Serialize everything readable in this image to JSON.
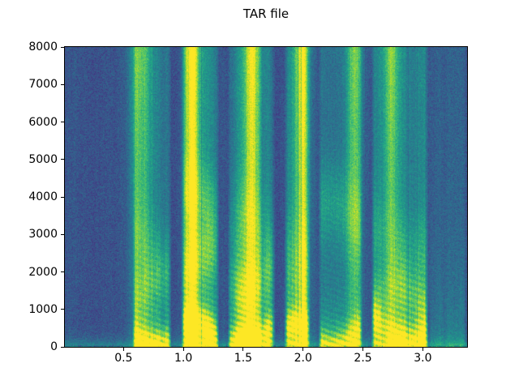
{
  "figure": {
    "background_color": "#ffffff",
    "spine_color": "#000000",
    "tick_color": "#000000"
  },
  "chart_data": {
    "type": "heatmap",
    "subtype": "spectrogram",
    "title": "TAR file",
    "xlabel": "",
    "ylabel": "",
    "xlim": [
      0.01,
      3.37
    ],
    "ylim": [
      0,
      8000
    ],
    "xticks": [
      0.5,
      1.0,
      1.5,
      2.0,
      2.5,
      3.0
    ],
    "xtick_labels": [
      "0.5",
      "1.0",
      "1.5",
      "2.0",
      "2.5",
      "3.0"
    ],
    "yticks": [
      0,
      1000,
      2000,
      3000,
      4000,
      5000,
      6000,
      7000,
      8000
    ],
    "ytick_labels": [
      "0",
      "1000",
      "2000",
      "3000",
      "4000",
      "5000",
      "6000",
      "7000",
      "8000"
    ],
    "grid": false,
    "legend": null,
    "colormap": "viridis",
    "colormap_anchors": [
      "#440154",
      "#482878",
      "#3e4989",
      "#31688e",
      "#26828e",
      "#1f9e89",
      "#35b779",
      "#6ece58",
      "#b5de2b",
      "#fde725"
    ],
    "content_description": "Speech spectrogram: background noise (dark blue-teal) until ~0.57 s, then voiced speech segments with strong yellow low-frequency energy, harmonic striations, bright full-height fricative columns near 0.63, 1.07, 1.58, 1.99, 2.43 and 2.73 s, short dark pauses between words, and a low-energy teal tail after ~3.05 s.",
    "noise_floor": 0.26,
    "pitch_spacing_hz": 165,
    "segments": [
      {
        "kind": "silence",
        "t0": 0.01,
        "t1": 0.57
      },
      {
        "kind": "speech",
        "t0": 0.57,
        "t1": 0.9,
        "amp": 1.0,
        "formants": [
          {
            "f": 350,
            "g": 0.5,
            "bw": 280
          },
          {
            "f": 1500,
            "g": 0.22,
            "bw": 500
          },
          {
            "f": 2700,
            "g": 0.18,
            "bw": 700
          }
        ]
      },
      {
        "kind": "pause",
        "t0": 0.9,
        "t1": 0.98,
        "amp": 0.12
      },
      {
        "kind": "speech",
        "t0": 0.98,
        "t1": 1.3,
        "amp": 0.95,
        "formants": [
          {
            "f": 400,
            "g": 0.5,
            "bw": 300
          },
          {
            "f": 2200,
            "g": 0.28,
            "bw": 600
          },
          {
            "f": 3800,
            "g": 0.22,
            "bw": 700
          }
        ]
      },
      {
        "kind": "pause",
        "t0": 1.3,
        "t1": 1.37,
        "amp": 0.12
      },
      {
        "kind": "speech",
        "t0": 1.37,
        "t1": 1.77,
        "amp": 1.0,
        "formants": [
          {
            "f": 350,
            "g": 0.55,
            "bw": 300
          },
          {
            "f": 1800,
            "g": 0.3,
            "bw": 600
          },
          {
            "f": 3000,
            "g": 0.18,
            "bw": 800
          }
        ]
      },
      {
        "kind": "pause",
        "t0": 1.77,
        "t1": 1.84,
        "amp": 0.12
      },
      {
        "kind": "speech",
        "t0": 1.84,
        "t1": 2.06,
        "amp": 1.0,
        "formants": [
          {
            "f": 300,
            "g": 0.5,
            "bw": 260
          },
          {
            "f": 2500,
            "g": 0.22,
            "bw": 900
          }
        ]
      },
      {
        "kind": "pause",
        "t0": 2.06,
        "t1": 2.13,
        "amp": 0.12
      },
      {
        "kind": "speech",
        "t0": 2.13,
        "t1": 2.5,
        "amp": 0.95,
        "formants": [
          {
            "f": 350,
            "g": 0.5,
            "bw": 300
          },
          {
            "f": 3500,
            "g": 0.32,
            "bw": 800
          }
        ]
      },
      {
        "kind": "pause",
        "t0": 2.5,
        "t1": 2.57,
        "amp": 0.12
      },
      {
        "kind": "speech",
        "t0": 2.57,
        "t1": 3.05,
        "amp": 0.9,
        "formants": [
          {
            "f": 400,
            "g": 0.5,
            "bw": 350
          },
          {
            "f": 1200,
            "g": 0.28,
            "bw": 500
          },
          {
            "f": 2800,
            "g": 0.18,
            "bw": 700
          }
        ]
      },
      {
        "kind": "tail",
        "t0": 3.05,
        "t1": 3.37,
        "amp": 0.45
      }
    ],
    "fricative_bands": [
      {
        "t": 0.63,
        "w": 0.065,
        "gain": 0.5
      },
      {
        "t": 1.07,
        "w": 0.045,
        "gain": 0.55
      },
      {
        "t": 1.58,
        "w": 0.045,
        "gain": 0.55
      },
      {
        "t": 1.99,
        "w": 0.045,
        "gain": 0.6
      },
      {
        "t": 2.43,
        "w": 0.045,
        "gain": 0.55
      },
      {
        "t": 2.73,
        "w": 0.045,
        "gain": 0.55
      }
    ]
  }
}
